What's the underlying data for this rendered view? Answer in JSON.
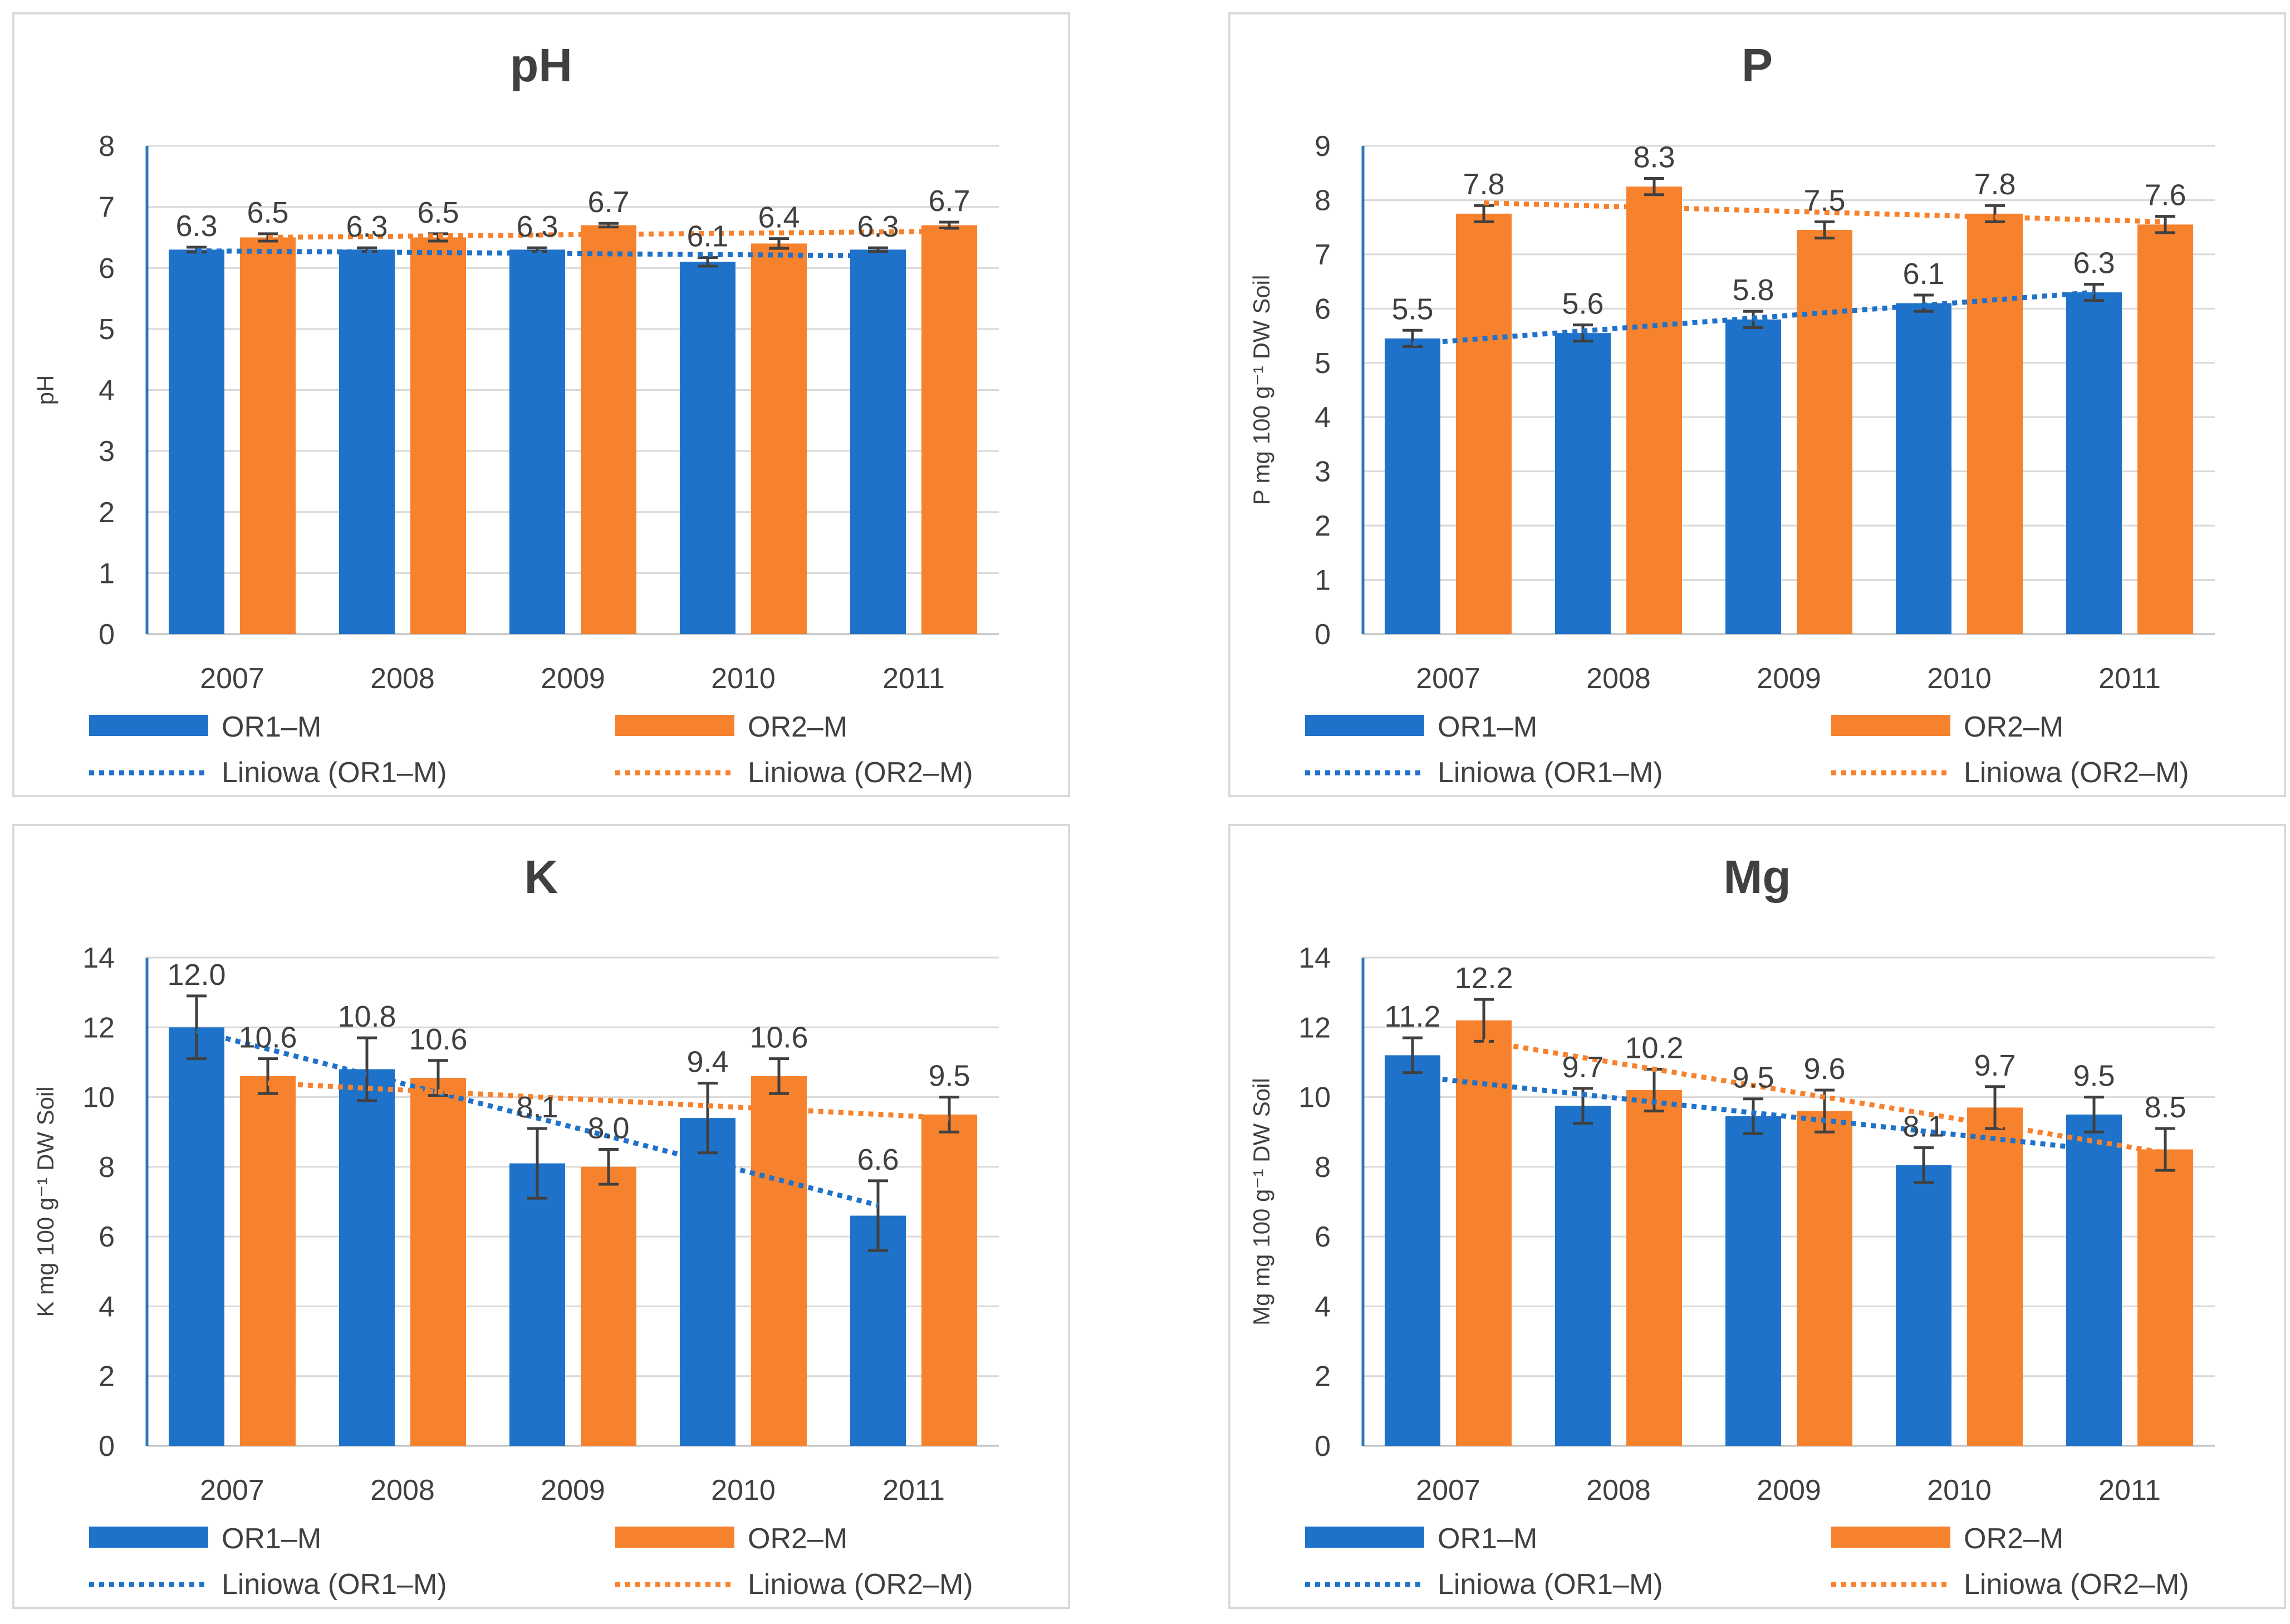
{
  "colors": {
    "or1": "#1f72c9",
    "or2": "#f7822e",
    "text": "#404040",
    "grid": "#d9d9d9"
  },
  "legend": {
    "or1": "OR1–M",
    "or2": "OR2–M",
    "trend_or1": "Liniowa (OR1–M)",
    "trend_or2": "Liniowa (OR2–M)"
  },
  "chart_data": [
    {
      "type": "bar",
      "title": "pH",
      "ylabel": "pH",
      "ylim": [
        0,
        8
      ],
      "yticks": [
        0,
        1,
        2,
        3,
        4,
        5,
        6,
        7,
        8
      ],
      "categories": [
        "2007",
        "2008",
        "2009",
        "2010",
        "2011"
      ],
      "series": [
        {
          "name": "OR1–M",
          "values": [
            6.3,
            6.3,
            6.3,
            6.1,
            6.3
          ],
          "labels": [
            "6.3",
            "6.3",
            "6.3",
            "6.1",
            "6.3"
          ],
          "errors": [
            0.04,
            0.03,
            0.03,
            0.07,
            0.03
          ]
        },
        {
          "name": "OR2–M",
          "values": [
            6.5,
            6.5,
            6.7,
            6.4,
            6.7
          ],
          "labels": [
            "6.5",
            "6.5",
            "6.7",
            "6.4",
            "6.7"
          ],
          "errors": [
            0.06,
            0.06,
            0.03,
            0.08,
            0.05
          ]
        }
      ],
      "trendlines": [
        {
          "name": "Liniowa (OR1–M)",
          "start": 6.28,
          "end": 6.2
        },
        {
          "name": "Liniowa (OR2–M)",
          "start": 6.5,
          "end": 6.6
        }
      ],
      "grid": true
    },
    {
      "type": "bar",
      "title": "P",
      "ylabel": "P mg 100 g⁻¹ DW Soil",
      "ylim": [
        0,
        9
      ],
      "yticks": [
        0,
        1,
        2,
        3,
        4,
        5,
        6,
        7,
        8,
        9
      ],
      "categories": [
        "2007",
        "2008",
        "2009",
        "2010",
        "2011"
      ],
      "series": [
        {
          "name": "OR1–M",
          "values": [
            5.45,
            5.55,
            5.8,
            6.1,
            6.3
          ],
          "labels": [
            "5.5",
            "5.6",
            "5.8",
            "6.1",
            "6.3"
          ],
          "errors": [
            0.15,
            0.15,
            0.15,
            0.15,
            0.15
          ]
        },
        {
          "name": "OR2–M",
          "values": [
            7.75,
            8.25,
            7.45,
            7.75,
            7.55
          ],
          "labels": [
            "7.8",
            "8.3",
            "7.5",
            "7.8",
            "7.6"
          ],
          "errors": [
            0.15,
            0.15,
            0.15,
            0.15,
            0.15
          ]
        }
      ],
      "trendlines": [
        {
          "name": "Liniowa (OR1–M)",
          "start": 5.35,
          "end": 6.3
        },
        {
          "name": "Liniowa (OR2–M)",
          "start": 7.95,
          "end": 7.6
        }
      ],
      "grid": true
    },
    {
      "type": "bar",
      "title": "K",
      "ylabel": "K mg 100 g⁻¹ DW Soil",
      "ylim": [
        0,
        14
      ],
      "yticks": [
        0,
        2,
        4,
        6,
        8,
        10,
        12,
        14
      ],
      "categories": [
        "2007",
        "2008",
        "2009",
        "2010",
        "2011"
      ],
      "series": [
        {
          "name": "OR1–M",
          "values": [
            12.0,
            10.8,
            8.1,
            9.4,
            6.6
          ],
          "labels": [
            "12.0",
            "10.8",
            "8.1",
            "9.4",
            "6.6"
          ],
          "errors": [
            0.9,
            0.9,
            1.0,
            1.0,
            1.0
          ]
        },
        {
          "name": "OR2–M",
          "values": [
            10.6,
            10.55,
            8.0,
            10.6,
            9.5
          ],
          "labels": [
            "10.6",
            "10.6",
            "8.0",
            "10.6",
            "9.5"
          ],
          "errors": [
            0.5,
            0.5,
            0.5,
            0.5,
            0.5
          ]
        }
      ],
      "trendlines": [
        {
          "name": "Liniowa (OR1–M)",
          "start": 11.9,
          "end": 6.9
        },
        {
          "name": "Liniowa (OR2–M)",
          "start": 10.4,
          "end": 9.4
        }
      ],
      "grid": true
    },
    {
      "type": "bar",
      "title": "Mg",
      "ylabel": "Mg mg 100 g⁻¹ DW Soil",
      "ylim": [
        0,
        14
      ],
      "yticks": [
        0,
        2,
        4,
        6,
        8,
        10,
        12,
        14
      ],
      "categories": [
        "2007",
        "2008",
        "2009",
        "2010",
        "2011"
      ],
      "series": [
        {
          "name": "OR1–M",
          "values": [
            11.2,
            9.75,
            9.45,
            8.05,
            9.5
          ],
          "labels": [
            "11.2",
            "9.7",
            "9.5",
            "8.1",
            "9.5"
          ],
          "errors": [
            0.5,
            0.5,
            0.5,
            0.5,
            0.5
          ]
        },
        {
          "name": "OR2–M",
          "values": [
            12.2,
            10.2,
            9.6,
            9.7,
            8.5
          ],
          "labels": [
            "12.2",
            "10.2",
            "9.6",
            "9.7",
            "8.5"
          ],
          "errors": [
            0.6,
            0.6,
            0.6,
            0.6,
            0.6
          ]
        }
      ],
      "trendlines": [
        {
          "name": "Liniowa (OR1–M)",
          "start": 10.6,
          "end": 8.5
        },
        {
          "name": "Liniowa (OR2–M)",
          "start": 11.6,
          "end": 8.4
        }
      ],
      "grid": true
    }
  ]
}
